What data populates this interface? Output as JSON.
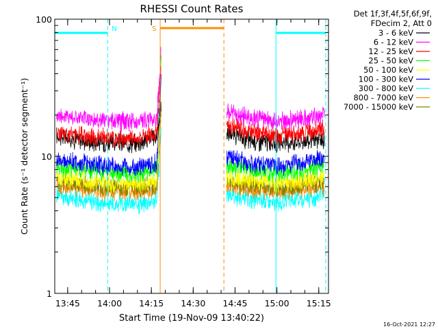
{
  "chart_data": {
    "type": "line",
    "title": "RHESSI Count Rates",
    "xlabel": "Start Time (19-Nov-09 13:40:22)",
    "ylabel": "Count Rate (s⁻¹ detector segment⁻¹)",
    "yscale": "log",
    "ylim": [
      1,
      100
    ],
    "xlim": [
      "13:40:22",
      "15:18:30"
    ],
    "x_ticks": [
      "13:45",
      "14:00",
      "14:15",
      "14:30",
      "14:45",
      "15:00",
      "15:15"
    ],
    "y_ticks": [
      "1",
      "10",
      "100"
    ],
    "legend_header": [
      "Det 1f,3f,4f,5f,6f,9f,",
      "FDecim 2, Att 0"
    ],
    "legend_position": "right",
    "footer": "16-Oct-2021 12:27",
    "series": [
      {
        "name": "3 - 6 keV",
        "color": "#000000",
        "x": [
          "13:41",
          "13:50",
          "14:00",
          "14:10",
          "14:17",
          "14:18:30",
          "14:42",
          "14:50",
          "15:00",
          "15:10",
          "15:17"
        ],
        "values": [
          14,
          13,
          12.5,
          12.5,
          14,
          22,
          15,
          13,
          12.5,
          13,
          13
        ]
      },
      {
        "name": "6 - 12 keV",
        "color": "#ff00ff",
        "x": [
          "13:41",
          "13:50",
          "14:00",
          "14:10",
          "14:17",
          "14:18:30",
          "14:42",
          "14:50",
          "15:00",
          "15:10",
          "15:17"
        ],
        "values": [
          20,
          19,
          18,
          18,
          19,
          60,
          21,
          19,
          18,
          19,
          20
        ]
      },
      {
        "name": "12 - 25 keV",
        "color": "#ff0000",
        "x": [
          "13:41",
          "13:50",
          "14:00",
          "14:10",
          "14:17",
          "14:18:30",
          "14:42",
          "14:50",
          "15:00",
          "15:10",
          "15:17"
        ],
        "values": [
          15,
          14,
          13.5,
          13.5,
          15,
          45,
          17,
          15,
          14,
          15,
          16
        ]
      },
      {
        "name": "25 - 50 keV",
        "color": "#00ff00",
        "x": [
          "13:41",
          "13:50",
          "14:00",
          "14:10",
          "14:17",
          "14:18:30",
          "14:42",
          "14:50",
          "15:00",
          "15:10",
          "15:17"
        ],
        "values": [
          8.5,
          8,
          7.5,
          7.5,
          8,
          50,
          8.5,
          8,
          7.5,
          8,
          8.5
        ]
      },
      {
        "name": "50 - 100 keV",
        "color": "#ffff00",
        "x": [
          "13:41",
          "13:50",
          "14:00",
          "14:10",
          "14:17",
          "14:18:30",
          "14:42",
          "14:50",
          "15:00",
          "15:10",
          "15:17"
        ],
        "values": [
          7,
          6.7,
          6.3,
          6.3,
          6.7,
          25,
          7,
          6.7,
          6.3,
          6.7,
          7
        ]
      },
      {
        "name": "100 - 300 keV",
        "color": "#0000ff",
        "x": [
          "13:41",
          "13:50",
          "14:00",
          "14:10",
          "14:17",
          "14:18:30",
          "14:42",
          "14:50",
          "15:00",
          "15:10",
          "15:17"
        ],
        "values": [
          9.5,
          9,
          8.5,
          8.3,
          9,
          35,
          10,
          9,
          8.5,
          9,
          9.5
        ]
      },
      {
        "name": "300 - 800 keV",
        "color": "#00ffff",
        "x": [
          "13:41",
          "13:50",
          "14:00",
          "14:10",
          "14:17",
          "14:18:30",
          "14:42",
          "14:50",
          "15:00",
          "15:10",
          "15:17"
        ],
        "values": [
          5.2,
          4.8,
          4.5,
          4.5,
          4.9,
          15,
          5.3,
          4.9,
          4.6,
          4.9,
          5.2
        ]
      },
      {
        "name": "800 - 7000 keV",
        "color": "#ff8c00",
        "x": [
          "13:41",
          "13:50",
          "14:00",
          "14:10",
          "14:17",
          "14:18:30",
          "14:42",
          "14:50",
          "15:00",
          "15:10",
          "15:17"
        ],
        "values": [
          6.2,
          5.8,
          5.5,
          5.5,
          5.8,
          20,
          6.2,
          5.8,
          5.5,
          5.8,
          6
        ]
      },
      {
        "name": "7000 - 15000 keV",
        "color": "#808000",
        "x": [
          "13:41",
          "13:50",
          "14:00",
          "14:10",
          "14:17",
          "14:18:30",
          "14:42",
          "14:50",
          "15:00",
          "15:10",
          "15:17"
        ],
        "values": [
          6.6,
          6.2,
          5.9,
          5.9,
          6.2,
          22,
          6.6,
          6.2,
          5.9,
          6.2,
          6.4
        ]
      }
    ],
    "annotations": [
      {
        "type": "night",
        "label": "N",
        "color": "#00ffff",
        "start": "13:40:22",
        "end": "13:59:20"
      },
      {
        "type": "saa",
        "label": "S",
        "color": "#ff8c00",
        "start": "14:18:10",
        "end": "14:41:00"
      },
      {
        "type": "night",
        "label": "",
        "color": "#00ffff",
        "start": "14:59:40",
        "end": "15:17:30"
      }
    ]
  }
}
